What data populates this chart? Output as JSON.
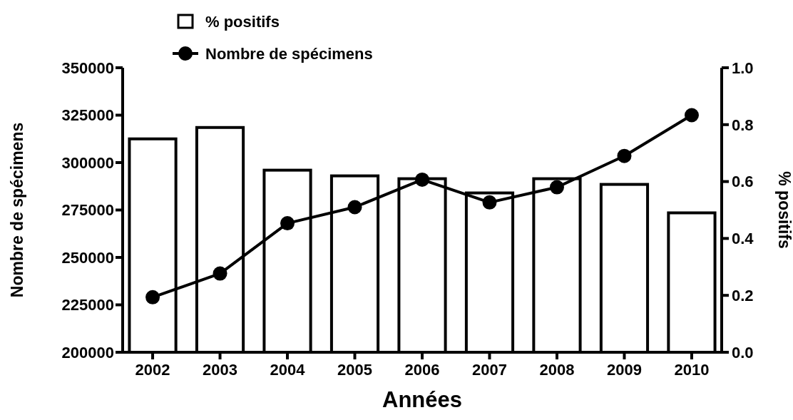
{
  "chart_data": {
    "type": "bar",
    "xlabel": "Années",
    "ylabel": "Nombre de spécimens",
    "y2label": "% positifs",
    "categories": [
      "2002",
      "2003",
      "2004",
      "2005",
      "2006",
      "2007",
      "2008",
      "2009",
      "2010"
    ],
    "series": [
      {
        "name": "% positifs",
        "axis": "y2",
        "color": "#ffffff",
        "values": [
          0.75,
          0.79,
          0.64,
          0.62,
          0.61,
          0.56,
          0.61,
          0.59,
          0.49
        ]
      },
      {
        "name": "Nombre de spécimens",
        "type": "line",
        "axis": "y",
        "color": "#000000",
        "marker": "circle",
        "values": [
          229000,
          241500,
          268000,
          276500,
          291000,
          279000,
          287000,
          303500,
          325000
        ]
      }
    ],
    "ylim": [
      200000,
      350000
    ],
    "yticks": [
      200000,
      225000,
      250000,
      275000,
      300000,
      325000,
      350000
    ],
    "y2lim": [
      0,
      1
    ],
    "y2ticks": [
      {
        "value": 0,
        "label": "0.0"
      },
      {
        "value": 0.2,
        "label": "0.2"
      },
      {
        "value": 0.4,
        "label": "0.4"
      },
      {
        "value": 0.6,
        "label": "0.6"
      },
      {
        "value": 0.8,
        "label": "0.8"
      },
      {
        "value": 1,
        "label": "1.0"
      }
    ],
    "legend": "top left",
    "grid": false
  }
}
